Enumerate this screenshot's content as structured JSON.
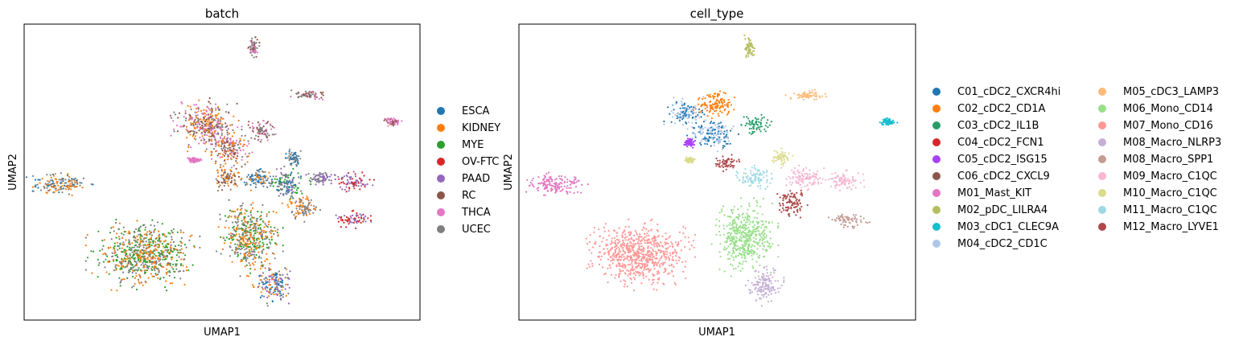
{
  "chart_data": [
    {
      "type": "scatter",
      "title": "batch",
      "xlabel": "UMAP1",
      "ylabel": "UMAP2",
      "grid": false,
      "ticks": "none",
      "legend_position": "right",
      "series": [
        {
          "name": "ESCA",
          "color": "#1f77b4"
        },
        {
          "name": "KIDNEY",
          "color": "#ff7f0e"
        },
        {
          "name": "MYE",
          "color": "#2ca02c"
        },
        {
          "name": "OV-FTC",
          "color": "#d62728"
        },
        {
          "name": "PAAD",
          "color": "#9467bd"
        },
        {
          "name": "RC",
          "color": "#8c564b"
        },
        {
          "name": "THCA",
          "color": "#e377c2"
        },
        {
          "name": "UCEC",
          "color": "#7f7f7f"
        }
      ],
      "clusters": [
        {
          "x": 0.58,
          "y": 0.92,
          "rx": 0.012,
          "ry": 0.035,
          "mix": [
            "RC",
            "THCA",
            "UCEC"
          ]
        },
        {
          "x": 0.46,
          "y": 0.66,
          "rx": 0.075,
          "ry": 0.075,
          "mix": [
            "KIDNEY",
            "UCEC",
            "RC",
            "THCA"
          ]
        },
        {
          "x": 0.52,
          "y": 0.58,
          "rx": 0.05,
          "ry": 0.06,
          "mix": [
            "UCEC",
            "KIDNEY",
            "THCA",
            "RC"
          ]
        },
        {
          "x": 0.6,
          "y": 0.64,
          "rx": 0.035,
          "ry": 0.035,
          "mix": [
            "THCA",
            "UCEC",
            "RC"
          ]
        },
        {
          "x": 0.51,
          "y": 0.48,
          "rx": 0.035,
          "ry": 0.04,
          "mix": [
            "RC",
            "UCEC",
            "KIDNEY"
          ]
        },
        {
          "x": 0.72,
          "y": 0.76,
          "rx": 0.05,
          "ry": 0.015,
          "mix": [
            "RC",
            "UCEC",
            "THCA"
          ]
        },
        {
          "x": 0.93,
          "y": 0.67,
          "rx": 0.02,
          "ry": 0.012,
          "mix": [
            "RC",
            "THCA"
          ]
        },
        {
          "x": 0.09,
          "y": 0.46,
          "rx": 0.07,
          "ry": 0.035,
          "mix": [
            "UCEC",
            "KIDNEY",
            "ESCA"
          ]
        },
        {
          "x": 0.43,
          "y": 0.54,
          "rx": 0.015,
          "ry": 0.01,
          "mix": [
            "THCA"
          ]
        },
        {
          "x": 0.68,
          "y": 0.55,
          "rx": 0.02,
          "ry": 0.025,
          "mix": [
            "ESCA",
            "UCEC"
          ]
        },
        {
          "x": 0.59,
          "y": 0.48,
          "rx": 0.045,
          "ry": 0.035,
          "mix": [
            "KIDNEY",
            "ESCA",
            "UCEC"
          ]
        },
        {
          "x": 0.67,
          "y": 0.46,
          "rx": 0.045,
          "ry": 0.05,
          "mix": [
            "MYE",
            "UCEC",
            "ESCA",
            "PAAD"
          ]
        },
        {
          "x": 0.75,
          "y": 0.48,
          "rx": 0.03,
          "ry": 0.02,
          "mix": [
            "PAAD",
            "UCEC"
          ]
        },
        {
          "x": 0.83,
          "y": 0.47,
          "rx": 0.045,
          "ry": 0.03,
          "mix": [
            "OV-FTC",
            "PAAD"
          ]
        },
        {
          "x": 0.7,
          "y": 0.38,
          "rx": 0.04,
          "ry": 0.04,
          "mix": [
            "KIDNEY",
            "UCEC"
          ]
        },
        {
          "x": 0.83,
          "y": 0.34,
          "rx": 0.045,
          "ry": 0.025,
          "mix": [
            "OV-FTC",
            "PAAD"
          ]
        },
        {
          "x": 0.3,
          "y": 0.22,
          "rx": 0.12,
          "ry": 0.1,
          "mix": [
            "KIDNEY",
            "MYE",
            "UCEC"
          ]
        },
        {
          "x": 0.57,
          "y": 0.28,
          "rx": 0.07,
          "ry": 0.11,
          "mix": [
            "KIDNEY",
            "UCEC",
            "MYE"
          ]
        },
        {
          "x": 0.63,
          "y": 0.12,
          "rx": 0.045,
          "ry": 0.06,
          "mix": [
            "UCEC",
            "ESCA",
            "PAAD",
            "KIDNEY"
          ]
        }
      ]
    },
    {
      "type": "scatter",
      "title": "cell_type",
      "xlabel": "UMAP1",
      "ylabel": "UMAP2",
      "grid": false,
      "ticks": "none",
      "legend_position": "right",
      "legend_columns": 2,
      "series": [
        {
          "name": "C01_cDC2_CXCR4hi",
          "color": "#1f77b4"
        },
        {
          "name": "C02_cDC2_CD1A",
          "color": "#ff7f0e"
        },
        {
          "name": "C03_cDC2_IL1B",
          "color": "#279e68"
        },
        {
          "name": "C04_cDC2_FCN1",
          "color": "#d62728"
        },
        {
          "name": "C05_cDC2_ISG15",
          "color": "#aa40fc"
        },
        {
          "name": "C06_cDC2_CXCL9",
          "color": "#8c564b"
        },
        {
          "name": "M01_Mast_KIT",
          "color": "#e377c2"
        },
        {
          "name": "M02_pDC_LILRA4",
          "color": "#b5bd61"
        },
        {
          "name": "M03_cDC1_CLEC9A",
          "color": "#17becf"
        },
        {
          "name": "M04_cDC2_CD1C",
          "color": "#aec7e8"
        },
        {
          "name": "M05_cDC3_LAMP3",
          "color": "#ffbb78"
        },
        {
          "name": "M06_Mono_CD14",
          "color": "#98df8a"
        },
        {
          "name": "M07_Mono_CD16",
          "color": "#ff9896"
        },
        {
          "name": "M08_Macro_NLRP3",
          "color": "#c5b0d5"
        },
        {
          "name": "M08_Macro_SPP1",
          "color": "#c49c94"
        },
        {
          "name": "M09_Macro_C1QC",
          "color": "#f7b6d2"
        },
        {
          "name": "M10_Macro_C1QC",
          "color": "#dbdb8d"
        },
        {
          "name": "M11_Macro_C1QC",
          "color": "#9edae5"
        },
        {
          "name": "M12_Macro_LYVE1",
          "color": "#ad494a"
        }
      ],
      "clusters": [
        {
          "x": 0.58,
          "y": 0.92,
          "rx": 0.012,
          "ry": 0.035,
          "mix": [
            "M02_pDC_LILRA4"
          ]
        },
        {
          "x": 0.42,
          "y": 0.7,
          "rx": 0.045,
          "ry": 0.045,
          "mix": [
            "C01_cDC2_CXCR4hi",
            "M04_cDC2_CD1C"
          ]
        },
        {
          "x": 0.5,
          "y": 0.73,
          "rx": 0.05,
          "ry": 0.04,
          "mix": [
            "C02_cDC2_CD1A"
          ]
        },
        {
          "x": 0.49,
          "y": 0.63,
          "rx": 0.055,
          "ry": 0.05,
          "mix": [
            "M04_cDC2_CD1C",
            "C01_cDC2_CXCR4hi"
          ]
        },
        {
          "x": 0.6,
          "y": 0.66,
          "rx": 0.035,
          "ry": 0.03,
          "mix": [
            "C03_cDC2_IL1B"
          ]
        },
        {
          "x": 0.43,
          "y": 0.6,
          "rx": 0.012,
          "ry": 0.015,
          "mix": [
            "C05_cDC2_ISG15"
          ]
        },
        {
          "x": 0.52,
          "y": 0.53,
          "rx": 0.03,
          "ry": 0.025,
          "mix": [
            "M12_Macro_LYVE1"
          ]
        },
        {
          "x": 0.73,
          "y": 0.76,
          "rx": 0.05,
          "ry": 0.015,
          "mix": [
            "M05_cDC3_LAMP3"
          ]
        },
        {
          "x": 0.93,
          "y": 0.67,
          "rx": 0.02,
          "ry": 0.012,
          "mix": [
            "M03_cDC1_CLEC9A"
          ]
        },
        {
          "x": 0.09,
          "y": 0.46,
          "rx": 0.07,
          "ry": 0.035,
          "mix": [
            "M01_Mast_KIT"
          ]
        },
        {
          "x": 0.43,
          "y": 0.54,
          "rx": 0.012,
          "ry": 0.01,
          "mix": [
            "M10_Macro_C1QC"
          ]
        },
        {
          "x": 0.66,
          "y": 0.55,
          "rx": 0.025,
          "ry": 0.025,
          "mix": [
            "M10_Macro_C1QC"
          ]
        },
        {
          "x": 0.59,
          "y": 0.48,
          "rx": 0.045,
          "ry": 0.035,
          "mix": [
            "M11_Macro_C1QC"
          ]
        },
        {
          "x": 0.72,
          "y": 0.48,
          "rx": 0.055,
          "ry": 0.035,
          "mix": [
            "M09_Macro_C1QC"
          ]
        },
        {
          "x": 0.82,
          "y": 0.47,
          "rx": 0.045,
          "ry": 0.03,
          "mix": [
            "M09_Macro_C1QC"
          ]
        },
        {
          "x": 0.69,
          "y": 0.4,
          "rx": 0.035,
          "ry": 0.045,
          "mix": [
            "M12_Macro_LYVE1"
          ]
        },
        {
          "x": 0.83,
          "y": 0.34,
          "rx": 0.045,
          "ry": 0.025,
          "mix": [
            "M08_Macro_SPP1"
          ]
        },
        {
          "x": 0.3,
          "y": 0.22,
          "rx": 0.12,
          "ry": 0.1,
          "mix": [
            "M07_Mono_CD16"
          ]
        },
        {
          "x": 0.57,
          "y": 0.28,
          "rx": 0.07,
          "ry": 0.11,
          "mix": [
            "M06_Mono_CD14"
          ]
        },
        {
          "x": 0.62,
          "y": 0.12,
          "rx": 0.04,
          "ry": 0.06,
          "mix": [
            "M08_Macro_NLRP3"
          ]
        }
      ]
    }
  ]
}
